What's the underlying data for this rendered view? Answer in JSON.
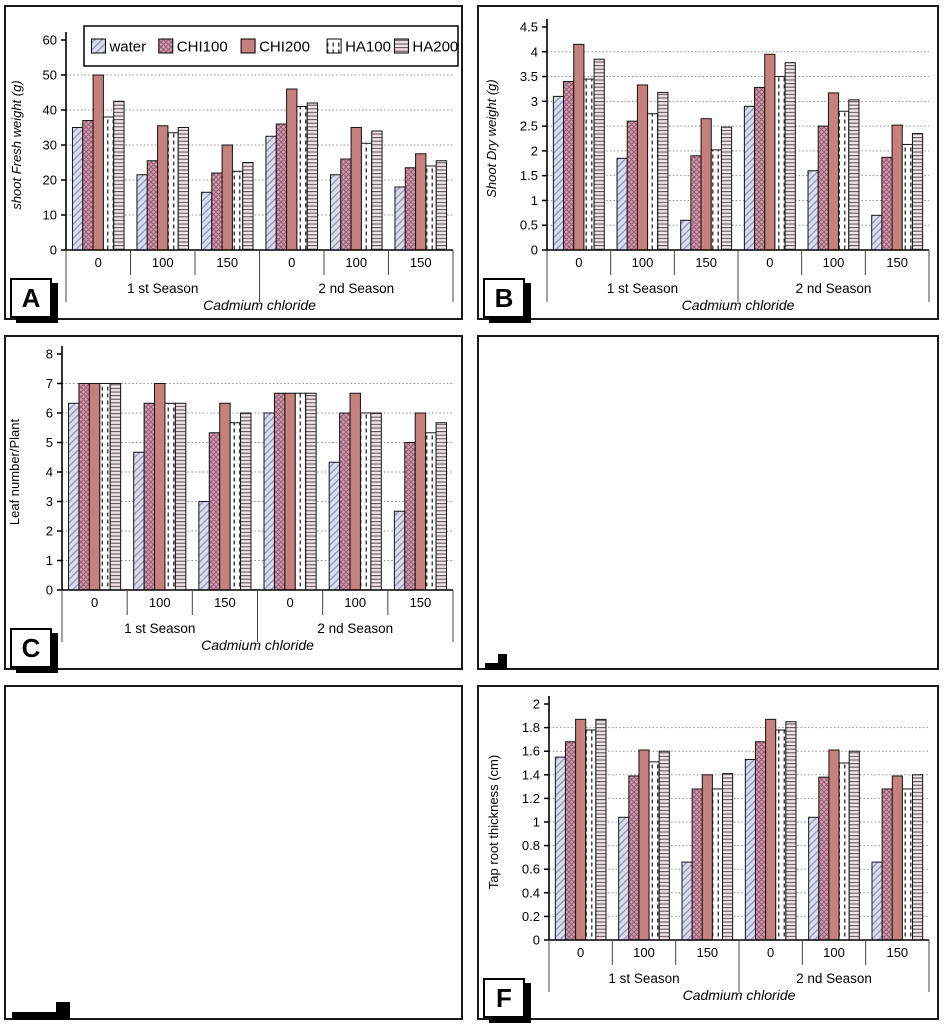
{
  "figure": {
    "legend": {
      "labels": [
        "water",
        "CHI100",
        "CHI200",
        "HA100",
        "HA200"
      ]
    },
    "series_styles": [
      {
        "name": "water",
        "fill": "#dcddec",
        "pattern": "diagonal-hatch",
        "pattern_color": "#8e90b4"
      },
      {
        "name": "CHI100",
        "fill": "#d09fae",
        "pattern": "crosshatch",
        "pattern_color": "#995a74"
      },
      {
        "name": "CHI200",
        "fill": "#c6807e",
        "pattern": "solid",
        "pattern_color": "#c6807e"
      },
      {
        "name": "HA100",
        "fill": "#ffffff",
        "pattern": "vertical-dashes",
        "pattern_color": "#3a3a3a"
      },
      {
        "name": "HA200",
        "fill": "#f3e2e6",
        "pattern": "horizontal-lines",
        "pattern_color": "#5a5a5a"
      }
    ]
  },
  "panels": [
    {
      "label": "A",
      "chart_data": {
        "type": "bar",
        "title": "",
        "ylabel": "shoot Fresh weight (g)",
        "ylabel_italic": true,
        "xlabel": "Cadmium chloride",
        "ylim": [
          0,
          60
        ],
        "ytick": 10,
        "grid": true,
        "legend_visible": true,
        "group_labels": [
          "0",
          "100",
          "150",
          "0",
          "100",
          "150"
        ],
        "season_labels": [
          "1 st Season",
          "2 nd Season"
        ],
        "series": [
          {
            "name": "water",
            "values": [
              35,
              21.5,
              16.5,
              32.5,
              21.5,
              18
            ]
          },
          {
            "name": "CHI100",
            "values": [
              37,
              25.5,
              22,
              36,
              26,
              23.5
            ]
          },
          {
            "name": "CHI200",
            "values": [
              50,
              35.5,
              30,
              46,
              35,
              27.5
            ]
          },
          {
            "name": "HA100",
            "values": [
              38,
              33.5,
              22.5,
              41,
              30.5,
              24
            ]
          },
          {
            "name": "HA200",
            "values": [
              42.5,
              35,
              25,
              42,
              34,
              25.5
            ]
          }
        ]
      }
    },
    {
      "label": "B",
      "chart_data": {
        "type": "bar",
        "title": "",
        "ylabel": "Shoot Dry weight (g)",
        "ylabel_italic": true,
        "xlabel": "Cadmium chloride",
        "ylim": [
          0,
          4.5
        ],
        "ytick": 0.5,
        "grid": true,
        "legend_visible": false,
        "group_labels": [
          "0",
          "100",
          "150",
          "0",
          "100",
          "150"
        ],
        "season_labels": [
          "1 st Season",
          "2 nd Season"
        ],
        "series": [
          {
            "name": "water",
            "values": [
              3.1,
              1.85,
              0.6,
              2.9,
              1.6,
              0.7
            ]
          },
          {
            "name": "CHI100",
            "values": [
              3.4,
              2.6,
              1.9,
              3.28,
              2.5,
              1.87
            ]
          },
          {
            "name": "CHI200",
            "values": [
              4.15,
              3.33,
              2.65,
              3.95,
              3.17,
              2.52
            ]
          },
          {
            "name": "HA100",
            "values": [
              3.45,
              2.75,
              2.02,
              3.5,
              2.8,
              2.13
            ]
          },
          {
            "name": "HA200",
            "values": [
              3.85,
              3.18,
              2.48,
              3.78,
              3.03,
              2.35
            ]
          }
        ]
      }
    },
    {
      "label": "C",
      "chart_data": {
        "type": "bar",
        "title": "",
        "ylabel": "Leaf number/Plant",
        "ylabel_italic": false,
        "xlabel": "Cadmium chloride",
        "ylim": [
          0,
          8
        ],
        "ytick": 1,
        "grid": true,
        "legend_visible": false,
        "group_labels": [
          "0",
          "100",
          "150",
          "0",
          "100",
          "150"
        ],
        "season_labels": [
          "1 st Season",
          "2 nd Season"
        ],
        "series": [
          {
            "name": "water",
            "values": [
              6.33,
              4.67,
              3,
              6,
              4.33,
              2.67
            ]
          },
          {
            "name": "CHI100",
            "values": [
              7,
              6.33,
              5.33,
              6.67,
              6,
              5
            ]
          },
          {
            "name": "CHI200",
            "values": [
              7,
              7,
              6.33,
              6.67,
              6.67,
              6
            ]
          },
          {
            "name": "HA100",
            "values": [
              7,
              6.33,
              5.67,
              6.67,
              6,
              5.33
            ]
          },
          {
            "name": "HA200",
            "values": [
              7,
              6.33,
              6,
              6.67,
              6,
              5.67
            ]
          }
        ]
      }
    },
    {
      "label": "",
      "empty": true
    },
    {
      "label": "",
      "empty": true
    },
    {
      "label": "F",
      "chart_data": {
        "type": "bar",
        "title": "",
        "ylabel": "Tap root thickness (cm)",
        "ylabel_italic": false,
        "xlabel": "Cadmium chloride",
        "ylim": [
          0,
          2
        ],
        "ytick": 0.2,
        "grid": true,
        "legend_visible": false,
        "group_labels": [
          "0",
          "100",
          "150",
          "0",
          "100",
          "150"
        ],
        "season_labels": [
          "1 st Season",
          "2 nd Season"
        ],
        "series": [
          {
            "name": "water",
            "values": [
              1.55,
              1.04,
              0.66,
              1.53,
              1.04,
              0.66
            ]
          },
          {
            "name": "CHI100",
            "values": [
              1.68,
              1.39,
              1.28,
              1.68,
              1.38,
              1.28
            ]
          },
          {
            "name": "CHI200",
            "values": [
              1.87,
              1.61,
              1.4,
              1.87,
              1.61,
              1.39
            ]
          },
          {
            "name": "HA100",
            "values": [
              1.78,
              1.51,
              1.28,
              1.78,
              1.5,
              1.28
            ]
          },
          {
            "name": "HA200",
            "values": [
              1.87,
              1.6,
              1.41,
              1.85,
              1.6,
              1.4
            ]
          }
        ]
      }
    }
  ]
}
